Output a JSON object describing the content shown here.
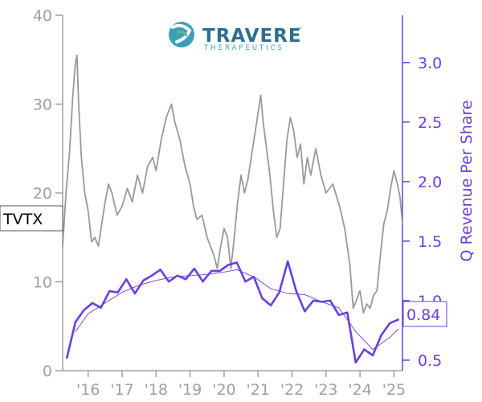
{
  "logo": {
    "name": "TRAVERE",
    "tagline": "THERAPEUTICS",
    "trademark": "™",
    "colors": {
      "teal": "#3d9fb5",
      "navy": "#2e6f8e",
      "green": "#5cb88a"
    }
  },
  "chart_data": {
    "type": "line",
    "ticker": "TVTX",
    "last_value_label": "0.84",
    "colors": {
      "price": "#999999",
      "revenue": "#6a3fe0",
      "revenue_trend": "#6a3fe0"
    },
    "x_axis": {
      "min": 2015.25,
      "max": 2025.25,
      "tick_values": [
        2016,
        2017,
        2018,
        2019,
        2020,
        2021,
        2022,
        2023,
        2024,
        2025
      ],
      "tick_labels": [
        "'16",
        "'17",
        "'18",
        "'19",
        "'20",
        "'21",
        "'22",
        "'23",
        "'24",
        "'25"
      ]
    },
    "y_left": {
      "min": 0,
      "max": 40,
      "ticks": [
        0,
        10,
        20,
        30,
        40
      ]
    },
    "y_right": {
      "label": "Q Revenue Per Share",
      "min": 0.412,
      "max": 3.397,
      "ticks": [
        0.5,
        1.0,
        1.5,
        2.0,
        2.5,
        3.0
      ],
      "tick_labels": [
        "0.5",
        "1.0",
        "1.5",
        "2.0",
        "2.5",
        "3.0"
      ]
    },
    "series": [
      {
        "key": "price",
        "axis": "left",
        "points": [
          [
            2015.25,
            14.0
          ],
          [
            2015.35,
            20.0
          ],
          [
            2015.45,
            24.5
          ],
          [
            2015.55,
            31.0
          ],
          [
            2015.62,
            34.5
          ],
          [
            2015.67,
            35.5
          ],
          [
            2015.72,
            30.0
          ],
          [
            2015.8,
            24.0
          ],
          [
            2015.9,
            20.0
          ],
          [
            2016.0,
            18.0
          ],
          [
            2016.1,
            14.5
          ],
          [
            2016.2,
            15.0
          ],
          [
            2016.3,
            14.0
          ],
          [
            2016.4,
            16.5
          ],
          [
            2016.5,
            19.0
          ],
          [
            2016.6,
            21.0
          ],
          [
            2016.7,
            20.0
          ],
          [
            2016.85,
            17.5
          ],
          [
            2017.0,
            18.5
          ],
          [
            2017.15,
            20.5
          ],
          [
            2017.3,
            19.0
          ],
          [
            2017.45,
            22.0
          ],
          [
            2017.6,
            20.0
          ],
          [
            2017.75,
            23.0
          ],
          [
            2017.9,
            24.0
          ],
          [
            2018.0,
            22.5
          ],
          [
            2018.15,
            26.0
          ],
          [
            2018.3,
            28.5
          ],
          [
            2018.45,
            30.0
          ],
          [
            2018.55,
            28.0
          ],
          [
            2018.7,
            26.0
          ],
          [
            2018.85,
            23.0
          ],
          [
            2019.0,
            21.0
          ],
          [
            2019.1,
            18.5
          ],
          [
            2019.2,
            17.0
          ],
          [
            2019.35,
            17.5
          ],
          [
            2019.5,
            15.0
          ],
          [
            2019.7,
            13.0
          ],
          [
            2019.8,
            11.5
          ],
          [
            2019.9,
            14.0
          ],
          [
            2020.0,
            16.0
          ],
          [
            2020.1,
            15.0
          ],
          [
            2020.2,
            11.5
          ],
          [
            2020.3,
            15.0
          ],
          [
            2020.4,
            19.0
          ],
          [
            2020.5,
            22.0
          ],
          [
            2020.6,
            20.0
          ],
          [
            2020.7,
            21.5
          ],
          [
            2020.8,
            24.0
          ],
          [
            2020.9,
            26.5
          ],
          [
            2021.0,
            29.0
          ],
          [
            2021.08,
            31.0
          ],
          [
            2021.15,
            28.0
          ],
          [
            2021.25,
            25.0
          ],
          [
            2021.35,
            22.0
          ],
          [
            2021.45,
            18.0
          ],
          [
            2021.55,
            15.0
          ],
          [
            2021.65,
            16.0
          ],
          [
            2021.75,
            21.0
          ],
          [
            2021.85,
            26.0
          ],
          [
            2021.95,
            28.5
          ],
          [
            2022.05,
            27.0
          ],
          [
            2022.15,
            24.0
          ],
          [
            2022.25,
            25.5
          ],
          [
            2022.35,
            21.0
          ],
          [
            2022.45,
            24.0
          ],
          [
            2022.55,
            22.0
          ],
          [
            2022.7,
            25.0
          ],
          [
            2022.85,
            22.0
          ],
          [
            2023.0,
            20.0
          ],
          [
            2023.2,
            21.0
          ],
          [
            2023.4,
            18.5
          ],
          [
            2023.55,
            16.0
          ],
          [
            2023.7,
            12.0
          ],
          [
            2023.8,
            7.0
          ],
          [
            2023.9,
            8.0
          ],
          [
            2024.0,
            9.0
          ],
          [
            2024.1,
            6.5
          ],
          [
            2024.2,
            7.5
          ],
          [
            2024.3,
            7.0
          ],
          [
            2024.4,
            8.5
          ],
          [
            2024.5,
            9.0
          ],
          [
            2024.6,
            13.0
          ],
          [
            2024.7,
            16.5
          ],
          [
            2024.8,
            18.0
          ],
          [
            2024.9,
            20.5
          ],
          [
            2025.0,
            22.5
          ],
          [
            2025.1,
            21.0
          ],
          [
            2025.18,
            19.5
          ],
          [
            2025.25,
            16.5
          ]
        ]
      },
      {
        "key": "revenue",
        "axis": "right",
        "points": [
          [
            2015.375,
            0.52
          ],
          [
            2015.625,
            0.82
          ],
          [
            2015.875,
            0.92
          ],
          [
            2016.125,
            0.98
          ],
          [
            2016.375,
            0.94
          ],
          [
            2016.625,
            1.08
          ],
          [
            2016.875,
            1.07
          ],
          [
            2017.125,
            1.18
          ],
          [
            2017.375,
            1.06
          ],
          [
            2017.625,
            1.17
          ],
          [
            2017.875,
            1.21
          ],
          [
            2018.125,
            1.26
          ],
          [
            2018.375,
            1.16
          ],
          [
            2018.625,
            1.21
          ],
          [
            2018.875,
            1.18
          ],
          [
            2019.125,
            1.27
          ],
          [
            2019.375,
            1.16
          ],
          [
            2019.625,
            1.25
          ],
          [
            2019.875,
            1.25
          ],
          [
            2020.125,
            1.3
          ],
          [
            2020.375,
            1.32
          ],
          [
            2020.625,
            1.16
          ],
          [
            2020.875,
            1.2
          ],
          [
            2021.125,
            1.02
          ],
          [
            2021.375,
            0.96
          ],
          [
            2021.625,
            1.07
          ],
          [
            2021.875,
            1.33
          ],
          [
            2022.125,
            1.08
          ],
          [
            2022.375,
            0.91
          ],
          [
            2022.625,
            1.0
          ],
          [
            2022.875,
            0.99
          ],
          [
            2023.125,
            1.0
          ],
          [
            2023.375,
            0.88
          ],
          [
            2023.625,
            0.9
          ],
          [
            2023.875,
            0.48
          ],
          [
            2024.125,
            0.59
          ],
          [
            2024.375,
            0.54
          ],
          [
            2024.625,
            0.71
          ],
          [
            2024.875,
            0.81
          ],
          [
            2025.125,
            0.84
          ]
        ]
      },
      {
        "key": "revenue_trend",
        "axis": "right",
        "points": [
          [
            2015.625,
            0.74
          ],
          [
            2016.0,
            0.89
          ],
          [
            2016.5,
            0.98
          ],
          [
            2017.0,
            1.07
          ],
          [
            2017.5,
            1.13
          ],
          [
            2018.0,
            1.17
          ],
          [
            2018.5,
            1.2
          ],
          [
            2019.0,
            1.21
          ],
          [
            2019.5,
            1.22
          ],
          [
            2020.0,
            1.24
          ],
          [
            2020.375,
            1.26
          ],
          [
            2020.875,
            1.2
          ],
          [
            2021.375,
            1.1
          ],
          [
            2021.875,
            1.06
          ],
          [
            2022.375,
            1.05
          ],
          [
            2022.875,
            0.99
          ],
          [
            2023.375,
            0.94
          ],
          [
            2023.875,
            0.74
          ],
          [
            2024.375,
            0.59
          ],
          [
            2024.875,
            0.69
          ],
          [
            2025.125,
            0.76
          ]
        ]
      }
    ]
  }
}
